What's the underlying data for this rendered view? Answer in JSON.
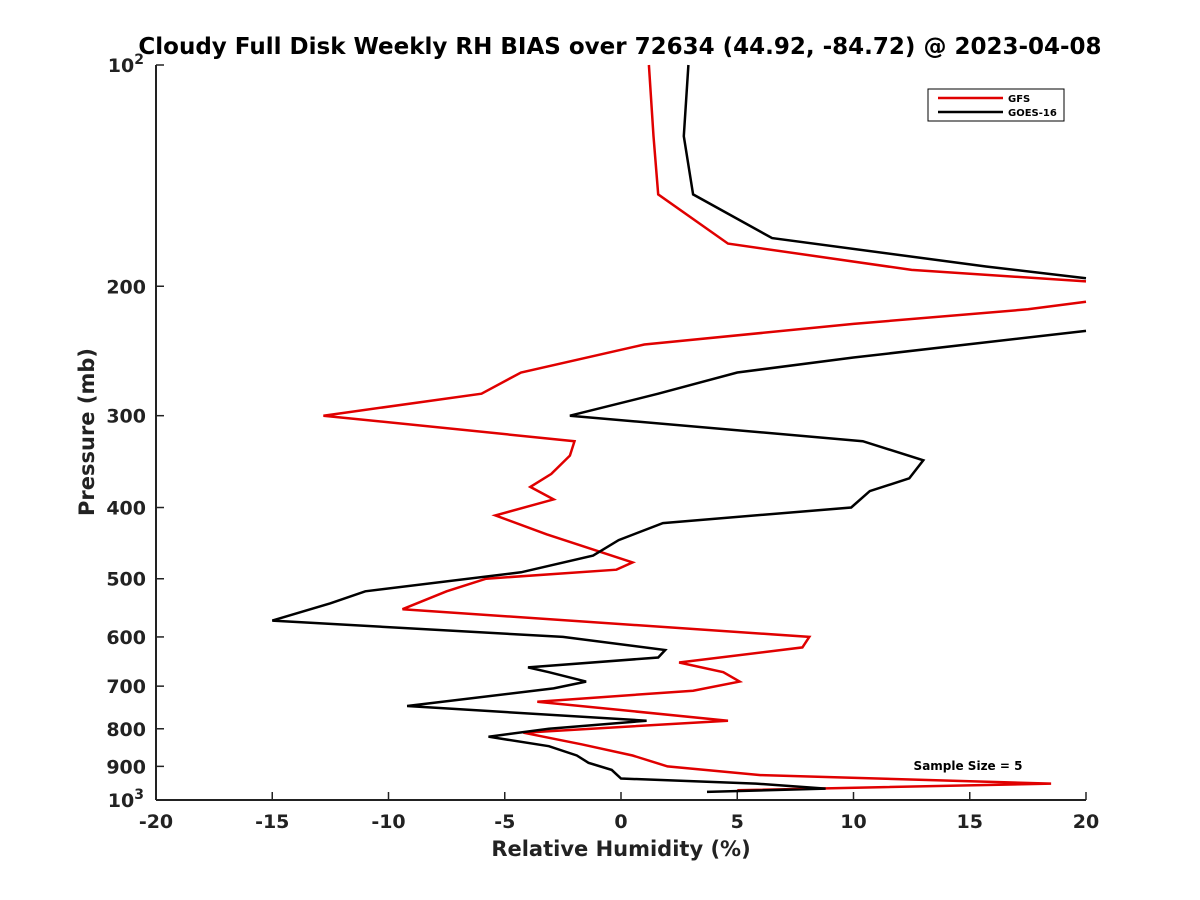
{
  "chart_data": {
    "type": "line",
    "title": "Cloudy Full Disk Weekly RH BIAS over 72634 (44.92, -84.72) @ 2023-04-08",
    "xlabel": "Relative Humidity (%)",
    "ylabel": "Pressure (mb)",
    "xlim": [
      -20,
      20
    ],
    "ylim": [
      100,
      1000
    ],
    "y_scale": "log",
    "y_reversed": true,
    "grid": false,
    "legend_position": "top-right",
    "x_ticks": [
      "-20",
      "-15",
      "-10",
      "-5",
      "0",
      "5",
      "10",
      "15",
      "20"
    ],
    "y_ticks": [
      {
        "value": 100,
        "base": "10",
        "exp": "2"
      },
      {
        "value": 200,
        "label": "200"
      },
      {
        "value": 300,
        "label": "300"
      },
      {
        "value": 400,
        "label": "400"
      },
      {
        "value": 500,
        "label": "500"
      },
      {
        "value": 600,
        "label": "600"
      },
      {
        "value": 700,
        "label": "700"
      },
      {
        "value": 800,
        "label": "800"
      },
      {
        "value": 900,
        "label": "900"
      },
      {
        "value": 1000,
        "base": "10",
        "exp": "3"
      }
    ],
    "annotation": "Sample Size = 5",
    "series": [
      {
        "name": "GFS",
        "color": "#e00000",
        "points": [
          [
            1.2,
            100
          ],
          [
            1.4,
            125
          ],
          [
            1.6,
            150
          ],
          [
            4.6,
            175
          ],
          [
            12.5,
            190
          ],
          [
            20,
            197
          ],
          [
            null,
            205
          ],
          [
            20,
            210
          ],
          [
            17.5,
            215
          ],
          [
            10,
            225
          ],
          [
            1,
            240
          ],
          [
            -4.3,
            262
          ],
          [
            -6,
            280
          ],
          [
            -12.8,
            300
          ],
          [
            -2,
            325
          ],
          [
            -2.2,
            340
          ],
          [
            -3,
            360
          ],
          [
            -3.9,
            375
          ],
          [
            -2.9,
            390
          ],
          [
            -5.4,
            410
          ],
          [
            -3.2,
            435
          ],
          [
            0.5,
            475
          ],
          [
            -0.2,
            486
          ],
          [
            -5.8,
            500
          ],
          [
            -7.5,
            520
          ],
          [
            -9.4,
            550
          ],
          [
            8.1,
            600
          ],
          [
            7.8,
            620
          ],
          [
            2.5,
            650
          ],
          [
            4.4,
            670
          ],
          [
            5.1,
            690
          ],
          [
            3.1,
            710
          ],
          [
            -3.6,
            735
          ],
          [
            4.6,
            780
          ],
          [
            -4.2,
            810
          ],
          [
            -1.7,
            840
          ],
          [
            0.5,
            870
          ],
          [
            2,
            900
          ],
          [
            6,
            925
          ],
          [
            18.5,
            950
          ],
          [
            5,
            970
          ]
        ]
      },
      {
        "name": "GOES-16",
        "color": "#000000",
        "points": [
          [
            2.9,
            100
          ],
          [
            2.7,
            125
          ],
          [
            3.1,
            150
          ],
          [
            6.5,
            172
          ],
          [
            15.7,
            188
          ],
          [
            20,
            195
          ],
          [
            null,
            205
          ],
          [
            20,
            230
          ],
          [
            10,
            250
          ],
          [
            5,
            262
          ],
          [
            1.6,
            280
          ],
          [
            -2.2,
            300
          ],
          [
            10.4,
            325
          ],
          [
            13,
            345
          ],
          [
            12.4,
            365
          ],
          [
            10.7,
            380
          ],
          [
            9.9,
            400
          ],
          [
            1.8,
            420
          ],
          [
            -0.1,
            443
          ],
          [
            -1.2,
            465
          ],
          [
            -4.3,
            490
          ],
          [
            -11,
            520
          ],
          [
            -12.5,
            540
          ],
          [
            -15,
            570
          ],
          [
            -2.5,
            600
          ],
          [
            1.9,
            625
          ],
          [
            1.6,
            640
          ],
          [
            -4,
            660
          ],
          [
            -3.1,
            670
          ],
          [
            -1.5,
            690
          ],
          [
            -2.9,
            705
          ],
          [
            -9.2,
            745
          ],
          [
            1.1,
            780
          ],
          [
            -3.1,
            800
          ],
          [
            -5.7,
            820
          ],
          [
            -3.1,
            845
          ],
          [
            -1.9,
            870
          ],
          [
            -1.4,
            890
          ],
          [
            -0.4,
            910
          ],
          [
            0,
            935
          ],
          [
            5.8,
            950
          ],
          [
            8.8,
            965
          ],
          [
            3.7,
            975
          ]
        ]
      }
    ]
  }
}
